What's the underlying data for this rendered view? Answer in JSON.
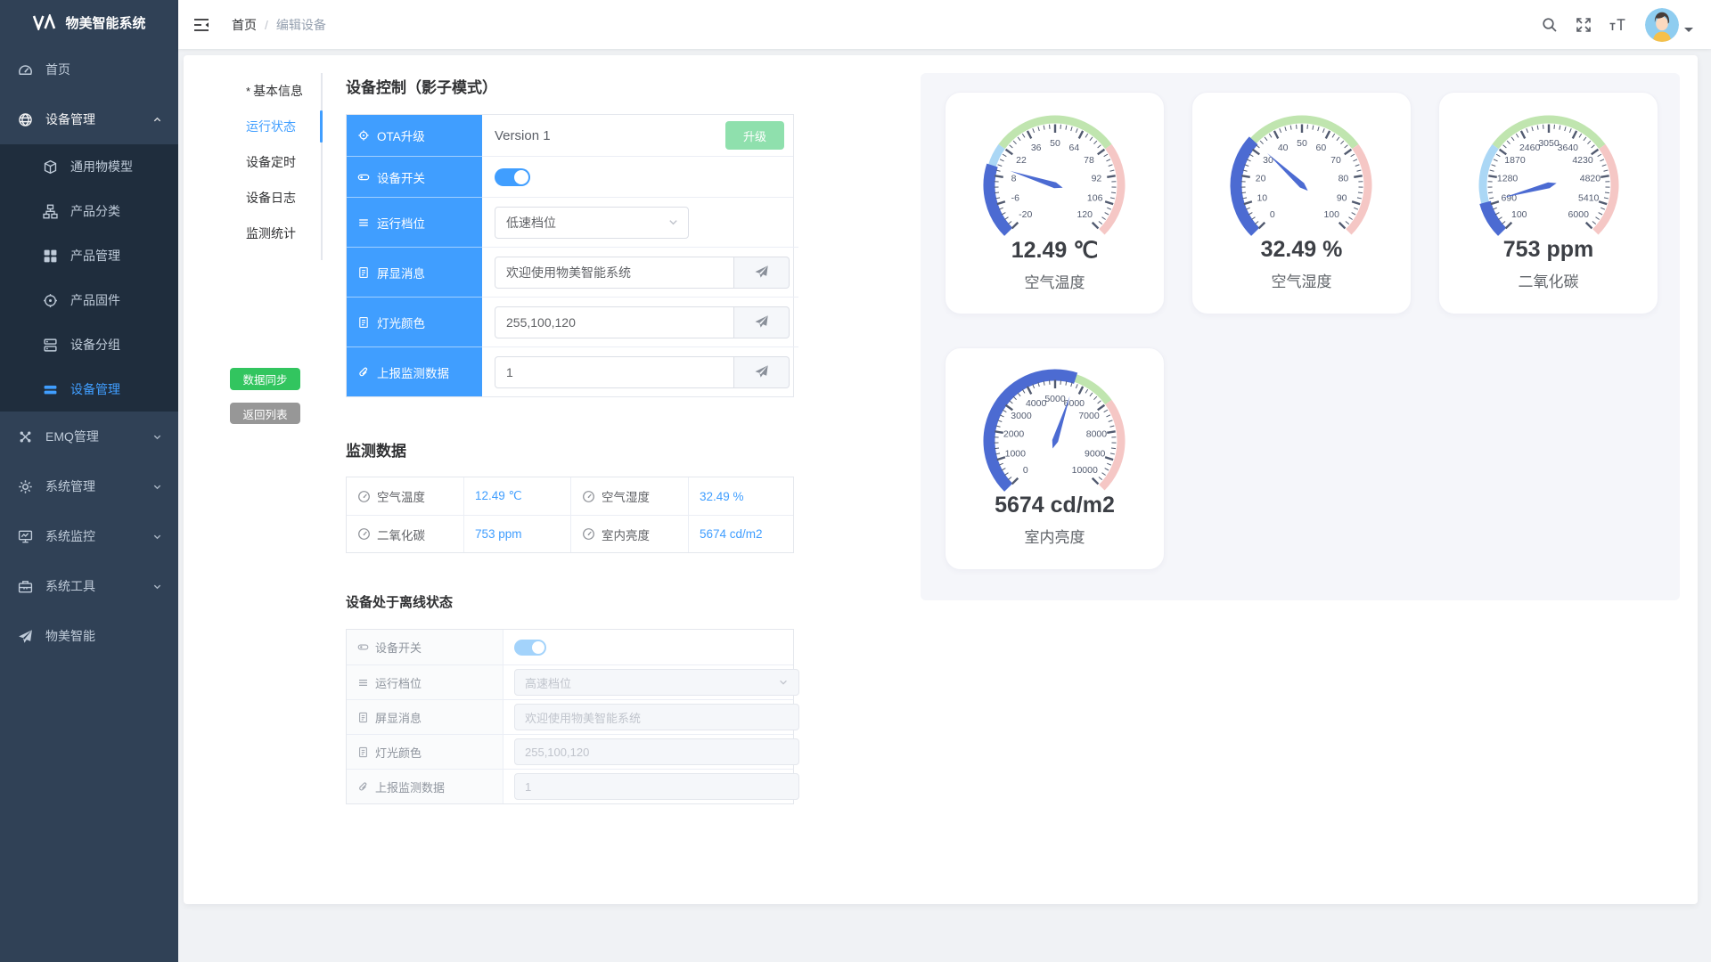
{
  "app": {
    "title": "物美智能系统"
  },
  "navbar": {
    "breadcrumb": {
      "home": "首页",
      "separator": "/",
      "current": "编辑设备"
    }
  },
  "sidebar": {
    "items": [
      {
        "label": "首页",
        "icon": "dashboard-icon"
      },
      {
        "label": "设备管理",
        "icon": "device-management-icon",
        "expanded": true,
        "children": [
          {
            "label": "通用物模型",
            "icon": "model-icon"
          },
          {
            "label": "产品分类",
            "icon": "category-icon"
          },
          {
            "label": "产品管理",
            "icon": "product-grid-icon"
          },
          {
            "label": "产品固件",
            "icon": "firmware-icon"
          },
          {
            "label": "设备分组",
            "icon": "device-group-icon"
          },
          {
            "label": "设备管理",
            "icon": "device-list-icon",
            "active": true
          }
        ]
      },
      {
        "label": "EMQ管理",
        "icon": "emq-icon"
      },
      {
        "label": "系统管理",
        "icon": "gear-icon"
      },
      {
        "label": "系统监控",
        "icon": "monitor-icon"
      },
      {
        "label": "系统工具",
        "icon": "toolbox-icon"
      },
      {
        "label": "物美智能",
        "icon": "paper-plane-icon"
      }
    ]
  },
  "tabs": {
    "required_mark": "*",
    "items": [
      {
        "label": "基本信息",
        "required": true
      },
      {
        "label": "运行状态",
        "active": true
      },
      {
        "label": "设备定时"
      },
      {
        "label": "设备日志"
      },
      {
        "label": "监测统计"
      }
    ]
  },
  "actions": {
    "sync_label": "数据同步",
    "back_label": "返回列表"
  },
  "shadow_panel": {
    "title": "设备控制（影子模式）",
    "rows": [
      {
        "label": "OTA升级",
        "type": "ota",
        "value": "Version 1",
        "button_label": "升级"
      },
      {
        "label": "设备开关",
        "type": "switch",
        "state": "on"
      },
      {
        "label": "运行档位",
        "type": "select",
        "value": "低速档位"
      },
      {
        "label": "屏显消息",
        "type": "input-send",
        "value": "欢迎使用物美智能系统"
      },
      {
        "label": "灯光颜色",
        "type": "input-send",
        "value": "255,100,120"
      },
      {
        "label": "上报监测数据",
        "type": "input-send",
        "value": "1"
      }
    ]
  },
  "monitor_panel": {
    "title": "监测数据",
    "cells": [
      {
        "label": "空气温度",
        "value": "12.49 ℃"
      },
      {
        "label": "空气湿度",
        "value": "32.49 %"
      },
      {
        "label": "二氧化碳",
        "value": "753 ppm"
      },
      {
        "label": "室内亮度",
        "value": "5674 cd/m2"
      }
    ]
  },
  "offline_panel": {
    "title": "设备处于离线状态",
    "rows": [
      {
        "label": "设备开关",
        "type": "switch",
        "state": "on"
      },
      {
        "label": "运行档位",
        "type": "select",
        "value": "高速档位"
      },
      {
        "label": "屏显消息",
        "type": "input",
        "value": "欢迎使用物美智能系统"
      },
      {
        "label": "灯光颜色",
        "type": "input",
        "value": "255,100,120"
      },
      {
        "label": "上报监测数据",
        "type": "input",
        "value": "1"
      }
    ]
  },
  "chart_data": [
    {
      "type": "gauge",
      "title": "空气温度",
      "unit": "℃",
      "min": -20,
      "max": 120,
      "value": 12.49,
      "display": "12.49 ℃",
      "tick_labels": [
        -20,
        -6,
        8,
        22,
        36,
        50,
        64,
        78,
        92,
        106,
        120
      ],
      "segments": [
        {
          "to": 0.3,
          "color": "#abd7f5"
        },
        {
          "to": 0.7,
          "color": "#c0e5af"
        },
        {
          "to": 1,
          "color": "#f5c7c5"
        }
      ]
    },
    {
      "type": "gauge",
      "title": "空气湿度",
      "unit": "%",
      "min": 0,
      "max": 100,
      "value": 32.49,
      "display": "32.49 %",
      "tick_labels": [
        0,
        10,
        20,
        30,
        40,
        50,
        60,
        70,
        80,
        90,
        100
      ],
      "segments": [
        {
          "to": 0.3,
          "color": "#abd7f5"
        },
        {
          "to": 0.7,
          "color": "#c0e5af"
        },
        {
          "to": 1,
          "color": "#f5c7c5"
        }
      ]
    },
    {
      "type": "gauge",
      "title": "二氧化碳",
      "unit": "ppm",
      "min": 100,
      "max": 6000,
      "value": 753,
      "display": "753 ppm",
      "tick_labels": [
        100,
        690,
        1280,
        1870,
        2460,
        3050,
        3640,
        4230,
        4820,
        5410,
        6000
      ],
      "segments": [
        {
          "to": 0.3,
          "color": "#abd7f5"
        },
        {
          "to": 0.7,
          "color": "#c0e5af"
        },
        {
          "to": 1,
          "color": "#f5c7c5"
        }
      ]
    },
    {
      "type": "gauge",
      "title": "室内亮度",
      "unit": "cd/m2",
      "min": 0,
      "max": 10000,
      "value": 5674,
      "display": "5674 cd/m2",
      "tick_labels": [
        0,
        1000,
        2000,
        3000,
        4000,
        5000,
        6000,
        7000,
        8000,
        9000,
        10000
      ],
      "segments": [
        {
          "to": 0.3,
          "color": "#abd7f5"
        },
        {
          "to": 0.7,
          "color": "#c0e5af"
        },
        {
          "to": 1,
          "color": "#f5c7c5"
        }
      ]
    }
  ],
  "colors": {
    "accent": "#409eff",
    "sidebar_bg": "#304156",
    "submenu_bg": "#1f2d3d",
    "sync_button": "#32c55f",
    "back_button": "#979797",
    "upgrade_button": "#8fe0ad",
    "gauge": {
      "progress": "#4c6bd2",
      "tick": "#525b70",
      "segments_low": "#abd7f5",
      "segments_mid": "#c0e5af",
      "segments_high": "#f5c7c5"
    }
  }
}
